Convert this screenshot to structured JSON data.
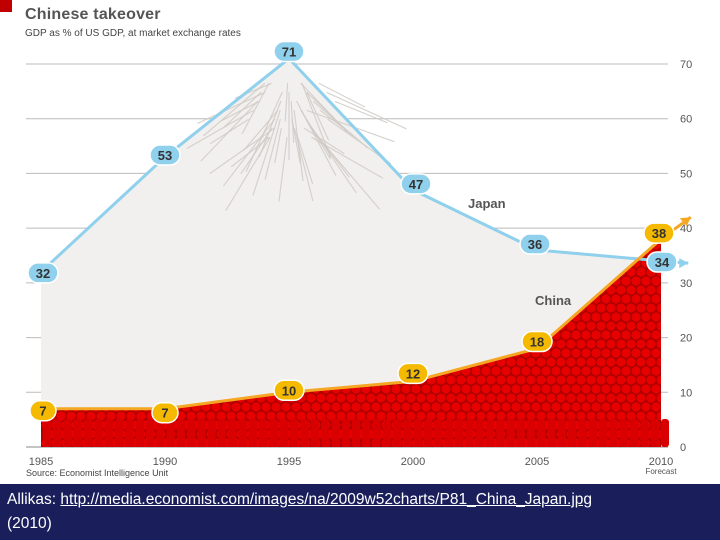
{
  "title": "Chinese takeover",
  "subtitle": "GDP as % of US GDP,  at market exchange rates",
  "source": "Source: Economist Intelligence Unit",
  "caption": {
    "prefix": "Allikas: ",
    "link": "http://media.economist.com/images/na/2009w52charts/P81_China_Japan.jpg",
    "suffix": "(2010)"
  },
  "colors": {
    "japan": "#8fd0ec",
    "japan_badge": "#8fd0ec",
    "china": "#f5a623",
    "china_badge": "#f5b900",
    "china_fill": "#e60000",
    "mountain": "#f2f0ee",
    "footer": "#1a1f5c"
  },
  "chart_data": {
    "type": "line",
    "title": "Chinese takeover",
    "subtitle": "GDP as % of US GDP,  at market exchange rates",
    "x_ticks": [
      "1985",
      "1990",
      "1995",
      "2000",
      "2005",
      "2010"
    ],
    "x_extra_label": "Forecast",
    "y_ticks": [
      "0",
      "10",
      "20",
      "30",
      "40",
      "50",
      "60",
      "70"
    ],
    "ylim": [
      0,
      70
    ],
    "xlim": [
      1985,
      2010
    ],
    "grid": true,
    "y_axis_side": "right",
    "series": [
      {
        "name": "Japan",
        "points": [
          {
            "x": 1985,
            "y": 32,
            "label": "32"
          },
          {
            "x": 1990,
            "y": 53,
            "label": "53"
          },
          {
            "x": 1995,
            "y": 71,
            "label": "71"
          },
          {
            "x": 2000,
            "y": 47,
            "label": "47"
          },
          {
            "x": 2005,
            "y": 36,
            "label": "36"
          },
          {
            "x": 2010,
            "y": 34,
            "label": "34"
          }
        ]
      },
      {
        "name": "China",
        "points": [
          {
            "x": 1985,
            "y": 7,
            "label": "7"
          },
          {
            "x": 1990,
            "y": 7,
            "label": "7"
          },
          {
            "x": 1995,
            "y": 10,
            "label": "10"
          },
          {
            "x": 2000,
            "y": 12,
            "label": "12"
          },
          {
            "x": 2005,
            "y": 18,
            "label": "18"
          },
          {
            "x": 2010,
            "y": 38,
            "label": "38"
          }
        ]
      }
    ]
  }
}
